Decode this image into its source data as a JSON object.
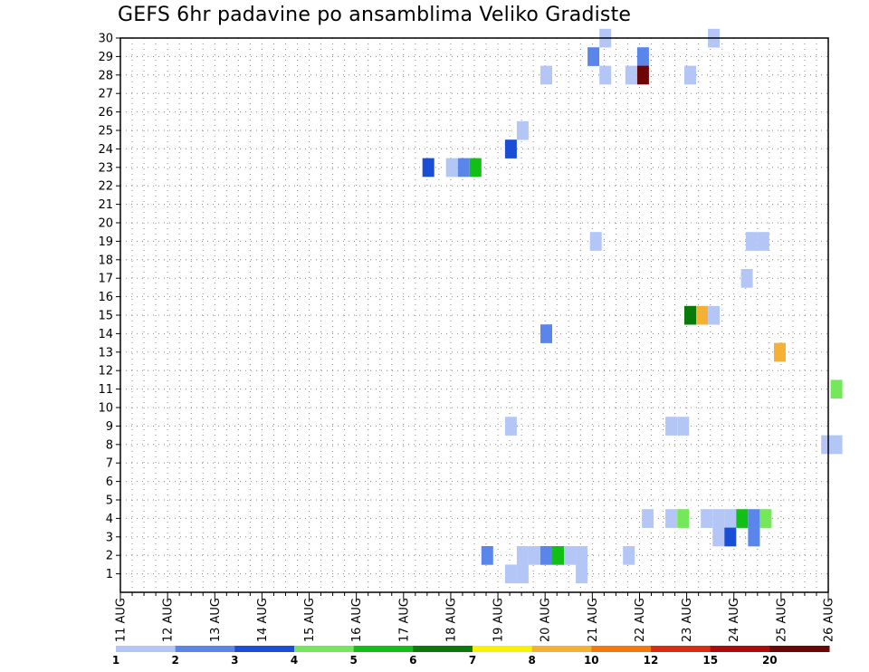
{
  "chart_data": {
    "type": "heatmap",
    "title": "GEFS 6hr padavine po ansamblima Veliko Gradiste",
    "x_tick_labels": [
      "11 AUG",
      "12 AUG",
      "13 AUG",
      "14 AUG",
      "15 AUG",
      "16 AUG",
      "17 AUG",
      "18 AUG",
      "19 AUG",
      "20 AUG",
      "21 AUG",
      "22 AUG",
      "23 AUG",
      "24 AUG",
      "25 AUG",
      "26 AUG"
    ],
    "x_range_days": [
      0,
      15
    ],
    "y_tick_labels": [
      "1",
      "2",
      "3",
      "4",
      "5",
      "6",
      "7",
      "8",
      "9",
      "10",
      "11",
      "12",
      "13",
      "14",
      "15",
      "16",
      "17",
      "18",
      "19",
      "20",
      "21",
      "22",
      "23",
      "24",
      "25",
      "26",
      "27",
      "28",
      "29",
      "30"
    ],
    "y_range": [
      0,
      30
    ],
    "grid": true,
    "colorbar": {
      "colors": [
        "#b3c6f5",
        "#5a86ec",
        "#1a4ed6",
        "#74e85a",
        "#12c015",
        "#0a7a0a",
        "#f7f300",
        "#f5b133",
        "#f4790a",
        "#dc2c10",
        "#ad0a0a",
        "#6e0505"
      ],
      "labels": [
        "1",
        "2",
        "3",
        "4",
        "5",
        "6",
        "7",
        "8",
        "10",
        "12",
        "15",
        "20"
      ]
    },
    "cells": [
      {
        "d": 10.15,
        "m": 30,
        "c": 0
      },
      {
        "d": 12.45,
        "m": 30,
        "c": 0
      },
      {
        "d": 9.9,
        "m": 29,
        "c": 1
      },
      {
        "d": 10.95,
        "m": 29,
        "c": 1
      },
      {
        "d": 8.9,
        "m": 28,
        "c": 0
      },
      {
        "d": 10.15,
        "m": 28,
        "c": 0
      },
      {
        "d": 10.7,
        "m": 28,
        "c": 0
      },
      {
        "d": 10.95,
        "m": 28,
        "c": 11
      },
      {
        "d": 11.95,
        "m": 28,
        "c": 0
      },
      {
        "d": 8.4,
        "m": 25,
        "c": 0
      },
      {
        "d": 8.15,
        "m": 24,
        "c": 2
      },
      {
        "d": 6.4,
        "m": 23,
        "c": 2
      },
      {
        "d": 6.9,
        "m": 23,
        "c": 0
      },
      {
        "d": 7.15,
        "m": 23,
        "c": 1
      },
      {
        "d": 7.4,
        "m": 23,
        "c": 4
      },
      {
        "d": 9.95,
        "m": 19,
        "c": 0
      },
      {
        "d": 13.25,
        "m": 19,
        "c": 0
      },
      {
        "d": 13.5,
        "m": 19,
        "c": 0
      },
      {
        "d": 13.15,
        "m": 17,
        "c": 0
      },
      {
        "d": 11.95,
        "m": 15,
        "c": 5
      },
      {
        "d": 12.2,
        "m": 15,
        "c": 7
      },
      {
        "d": 12.45,
        "m": 15,
        "c": 0
      },
      {
        "d": 8.9,
        "m": 14,
        "c": 1
      },
      {
        "d": 13.85,
        "m": 13,
        "c": 7
      },
      {
        "d": 15.05,
        "m": 11,
        "c": 3
      },
      {
        "d": 8.15,
        "m": 9,
        "c": 0
      },
      {
        "d": 11.55,
        "m": 9,
        "c": 0
      },
      {
        "d": 11.8,
        "m": 9,
        "c": 0
      },
      {
        "d": 14.85,
        "m": 8,
        "c": 0
      },
      {
        "d": 15.05,
        "m": 8,
        "c": 0
      },
      {
        "d": 11.05,
        "m": 4,
        "c": 0
      },
      {
        "d": 11.55,
        "m": 4,
        "c": 0
      },
      {
        "d": 11.8,
        "m": 4,
        "c": 3
      },
      {
        "d": 12.3,
        "m": 4,
        "c": 0
      },
      {
        "d": 12.55,
        "m": 4,
        "c": 0
      },
      {
        "d": 12.8,
        "m": 4,
        "c": 0
      },
      {
        "d": 13.05,
        "m": 4,
        "c": 4
      },
      {
        "d": 13.3,
        "m": 4,
        "c": 1
      },
      {
        "d": 13.55,
        "m": 4,
        "c": 3
      },
      {
        "d": 12.55,
        "m": 3,
        "c": 0
      },
      {
        "d": 12.8,
        "m": 3,
        "c": 2
      },
      {
        "d": 13.3,
        "m": 3,
        "c": 1
      },
      {
        "d": 7.65,
        "m": 2,
        "c": 1
      },
      {
        "d": 8.4,
        "m": 2,
        "c": 0
      },
      {
        "d": 8.65,
        "m": 2,
        "c": 0
      },
      {
        "d": 8.9,
        "m": 2,
        "c": 1
      },
      {
        "d": 9.15,
        "m": 2,
        "c": 4
      },
      {
        "d": 9.4,
        "m": 2,
        "c": 0
      },
      {
        "d": 9.65,
        "m": 2,
        "c": 0
      },
      {
        "d": 10.65,
        "m": 2,
        "c": 0
      },
      {
        "d": 8.15,
        "m": 1,
        "c": 0
      },
      {
        "d": 8.4,
        "m": 1,
        "c": 0
      },
      {
        "d": 9.65,
        "m": 1,
        "c": 0
      }
    ]
  }
}
